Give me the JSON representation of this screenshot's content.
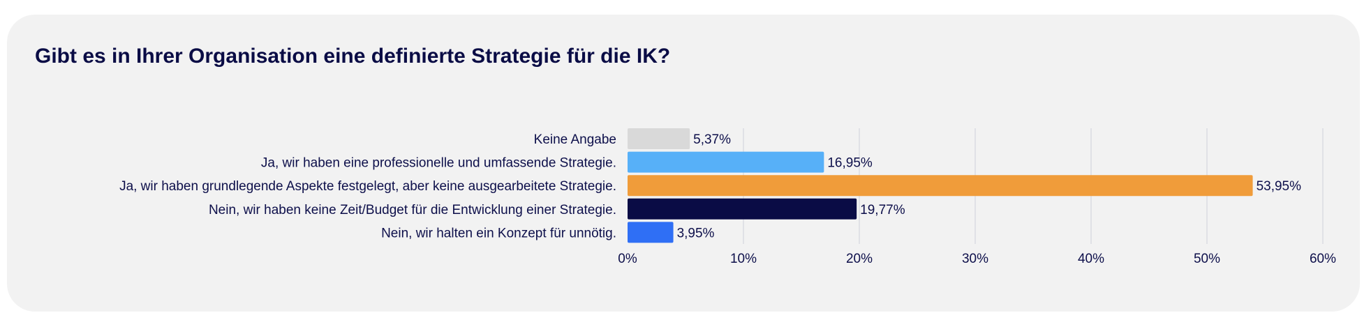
{
  "chart_data": {
    "type": "bar",
    "orientation": "horizontal",
    "title": "Gibt es in Ihrer Organisation eine definierte Strategie für die IK?",
    "categories": [
      "Keine Angabe",
      "Ja, wir haben eine professionelle und umfassende Strategie.",
      "Ja, wir haben grundlegende Aspekte festgelegt, aber keine ausgearbeitete Strategie.",
      "Nein, wir haben keine Zeit/Budget für die Entwicklung einer Strategie.",
      "Nein, wir halten ein Konzept für unnötig."
    ],
    "values": [
      5.37,
      16.95,
      53.95,
      19.77,
      3.95
    ],
    "data_labels": [
      "5,37%",
      "16,95%",
      "53,95%",
      "19,77%",
      "3,95%"
    ],
    "colors": [
      "#d9d9d9",
      "#57b0f8",
      "#f09c3a",
      "#0a0c45",
      "#2f6ff5"
    ],
    "xlim": [
      0,
      60
    ],
    "xticks": [
      0,
      10,
      20,
      30,
      40,
      50,
      60
    ],
    "xtick_labels": [
      "0%",
      "10%",
      "20%",
      "30%",
      "40%",
      "50%",
      "60%"
    ],
    "grid": true,
    "xlabel": "",
    "ylabel": ""
  }
}
